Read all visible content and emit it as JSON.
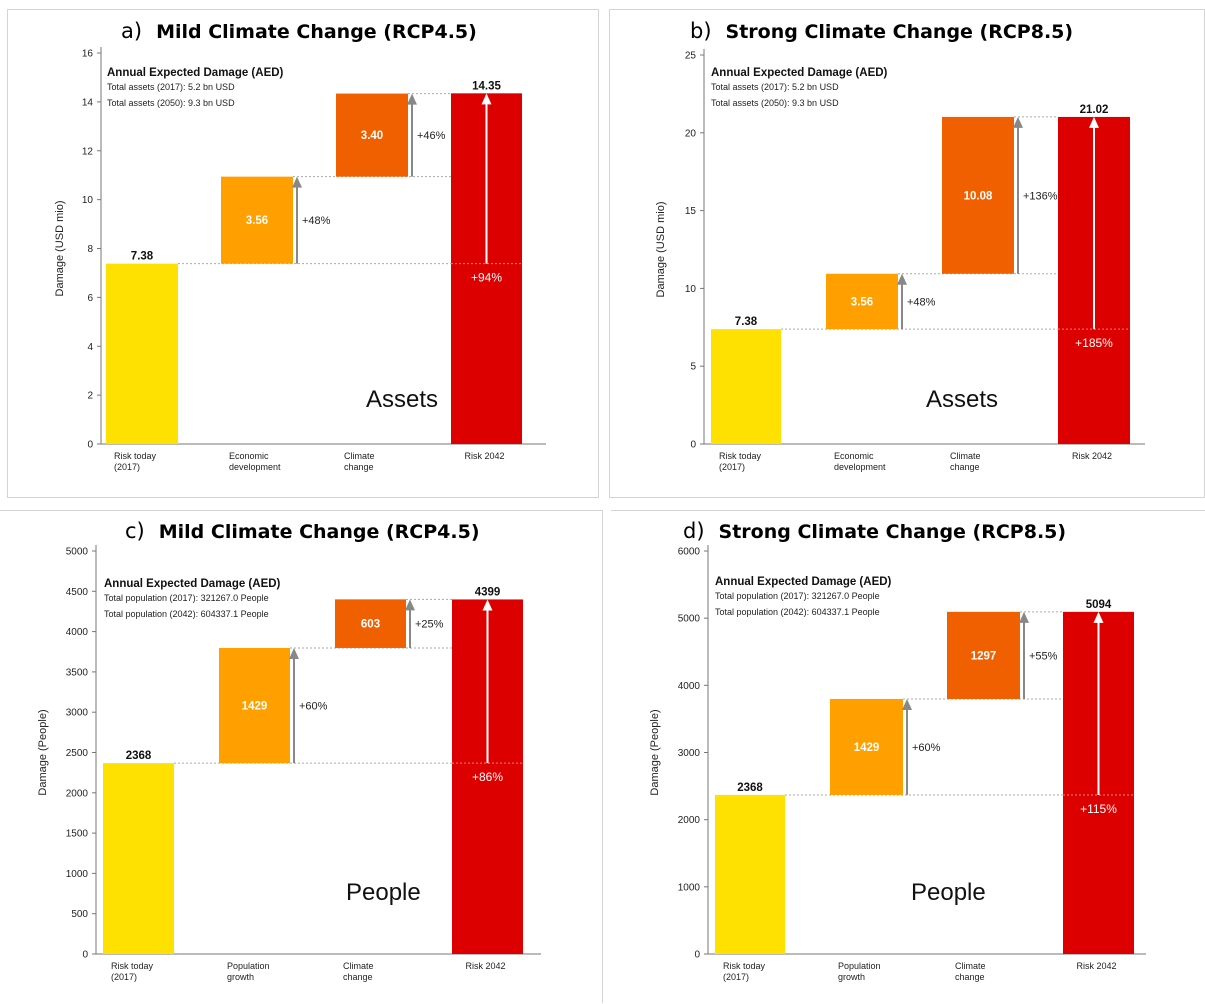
{
  "panels": [
    {
      "letter": "a)",
      "title": "Mild Climate Change (RCP4.5)",
      "aed_title": "Annual Expected Damage (AED)",
      "info_lines": [
        "Total assets (2017): 5.2 bn USD",
        "Total assets (2050): 9.3 bn USD"
      ],
      "big_label": "Assets",
      "chart_data": {
        "type": "bar",
        "subtype": "waterfall",
        "ylabel": "Damage (USD mio)",
        "ylim": [
          0,
          16
        ],
        "yticks": [
          0,
          2,
          4,
          6,
          8,
          10,
          12,
          14,
          16
        ],
        "categories": [
          "Risk today\n(2017)",
          "Economic\ndevelopment",
          "Climate\nchange",
          "Risk 2042"
        ],
        "values": [
          7.38,
          3.56,
          3.4,
          14.35
        ],
        "value_labels": [
          "7.38",
          "3.56",
          "3.40",
          "14.35"
        ],
        "increase_labels": [
          "+48%",
          "+46%"
        ],
        "total_increase_label": "+94%",
        "colors": [
          "#ffe100",
          "#ff9f00",
          "#f06000",
          "#dd0000"
        ]
      }
    },
    {
      "letter": "b)",
      "title": "Strong Climate Change (RCP8.5)",
      "aed_title": "Annual Expected Damage (AED)",
      "info_lines": [
        "Total assets (2017): 5.2 bn USD",
        "Total assets (2050): 9.3 bn USD"
      ],
      "big_label": "Assets",
      "chart_data": {
        "type": "bar",
        "subtype": "waterfall",
        "ylabel": "Damage (USD mio)",
        "ylim": [
          0,
          25
        ],
        "yticks": [
          0,
          5,
          10,
          15,
          20,
          25
        ],
        "categories": [
          "Risk today\n(2017)",
          "Economic\ndevelopment",
          "Climate\nchange",
          "Risk 2042"
        ],
        "values": [
          7.38,
          3.56,
          10.08,
          21.02
        ],
        "value_labels": [
          "7.38",
          "3.56",
          "10.08",
          "21.02"
        ],
        "increase_labels": [
          "+48%",
          "+136%"
        ],
        "total_increase_label": "+185%",
        "colors": [
          "#ffe100",
          "#ff9f00",
          "#f06000",
          "#dd0000"
        ]
      }
    },
    {
      "letter": "c)",
      "title": "Mild Climate Change (RCP4.5)",
      "aed_title": "Annual Expected Damage (AED)",
      "info_lines": [
        "Total population (2017): 321267.0  People",
        "Total population (2042): 604337.1  People"
      ],
      "big_label": "People",
      "chart_data": {
        "type": "bar",
        "subtype": "waterfall",
        "ylabel": "Damage (People)",
        "ylim": [
          0,
          5000
        ],
        "yticks": [
          0,
          500,
          1000,
          1500,
          2000,
          2500,
          3000,
          3500,
          4000,
          4500,
          5000
        ],
        "categories": [
          "Risk today\n(2017)",
          "Population\ngrowth",
          "Climate\nchange",
          "Risk 2042"
        ],
        "values": [
          2368,
          1429,
          603,
          4399
        ],
        "value_labels": [
          "2368",
          "1429",
          "603",
          "4399"
        ],
        "increase_labels": [
          "+60%",
          "+25%"
        ],
        "total_increase_label": "+86%",
        "colors": [
          "#ffe100",
          "#ff9f00",
          "#f06000",
          "#dd0000"
        ]
      }
    },
    {
      "letter": "d)",
      "title": "Strong Climate Change (RCP8.5)",
      "aed_title": "Annual Expected Damage (AED)",
      "info_lines": [
        "Total population (2017): 321267.0  People",
        "Total population (2042): 604337.1  People"
      ],
      "big_label": "People",
      "chart_data": {
        "type": "bar",
        "subtype": "waterfall",
        "ylabel": "Damage (People)",
        "ylim": [
          0,
          6000
        ],
        "yticks": [
          0,
          1000,
          2000,
          3000,
          4000,
          5000,
          6000
        ],
        "categories": [
          "Risk today\n(2017)",
          "Population\ngrowth",
          "Climate\nchange",
          "Risk 2042"
        ],
        "values": [
          2368,
          1429,
          1297,
          5094
        ],
        "value_labels": [
          "2368",
          "1429",
          "1297",
          "5094"
        ],
        "increase_labels": [
          "+60%",
          "+55%"
        ],
        "total_increase_label": "+115%",
        "colors": [
          "#ffe100",
          "#ff9f00",
          "#f06000",
          "#dd0000"
        ]
      }
    }
  ]
}
